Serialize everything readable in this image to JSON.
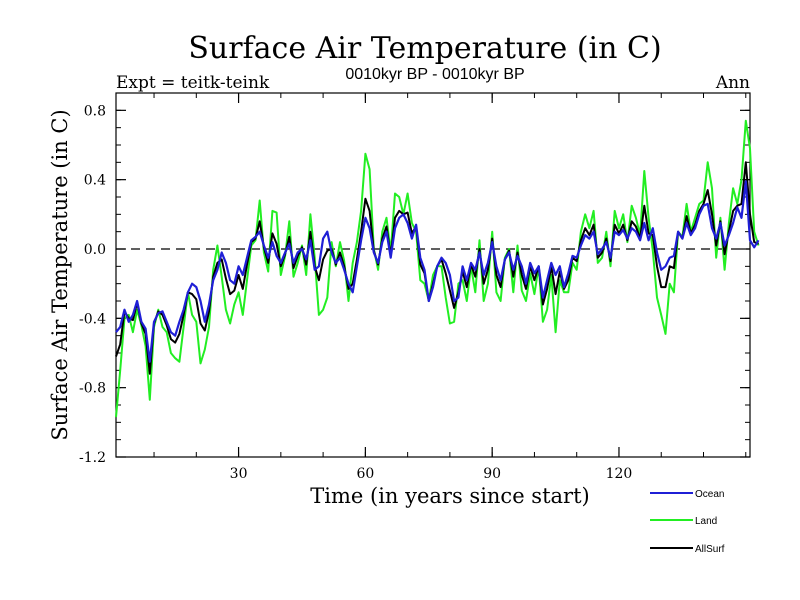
{
  "chart_data": {
    "type": "line",
    "title": "Surface Air Temperature (in C)",
    "subtitle_left": "Expt = teitk-teink",
    "subtitle_center": "0010kyr BP - 0010kyr BP",
    "subtitle_right": "Ann",
    "xlabel": "Time (in years since start)",
    "ylabel": "Surface Air Temperature (in C)",
    "xlim": [
      1,
      151
    ],
    "ylim": [
      -1.2,
      0.9
    ],
    "xticks": [
      30,
      60,
      90,
      120
    ],
    "xtick_labels": [
      "30",
      "60",
      "90",
      "120"
    ],
    "yticks": [
      -1.2,
      -0.8,
      -0.4,
      0.0,
      0.4,
      0.8
    ],
    "ytick_labels": [
      "-1.2",
      "-0.8",
      "-0.4",
      "0.0",
      "0.4",
      "0.8"
    ],
    "zero_line": "dashed",
    "legend_position": "bottom-right",
    "series": [
      {
        "name": "Ocean",
        "color": "#1f1fd6",
        "values": [
          -0.48,
          -0.45,
          -0.35,
          -0.42,
          -0.38,
          -0.3,
          -0.42,
          -0.46,
          -0.65,
          -0.42,
          -0.37,
          -0.36,
          -0.42,
          -0.48,
          -0.5,
          -0.42,
          -0.35,
          -0.25,
          -0.2,
          -0.22,
          -0.3,
          -0.42,
          -0.32,
          -0.18,
          -0.12,
          -0.02,
          -0.08,
          -0.18,
          -0.2,
          -0.1,
          -0.15,
          -0.05,
          0.05,
          0.07,
          0.1,
          0.02,
          -0.05,
          0.04,
          -0.04,
          -0.08,
          -0.02,
          0.03,
          -0.08,
          -0.02,
          0.0,
          -0.06,
          0.05,
          -0.12,
          -0.1,
          0.06,
          0.1,
          -0.02,
          -0.08,
          -0.05,
          -0.12,
          -0.2,
          -0.25,
          -0.1,
          0.05,
          0.18,
          0.12,
          -0.02,
          -0.08,
          0.04,
          0.1,
          -0.05,
          0.12,
          0.18,
          0.2,
          0.15,
          0.06,
          0.14,
          -0.05,
          -0.12,
          -0.3,
          -0.22,
          -0.1,
          -0.05,
          -0.08,
          -0.15,
          -0.3,
          -0.28,
          -0.1,
          -0.18,
          -0.08,
          -0.12,
          -0.02,
          -0.15,
          -0.08,
          0.04,
          -0.1,
          -0.18,
          -0.06,
          -0.02,
          -0.12,
          -0.04,
          -0.1,
          -0.2,
          -0.08,
          -0.14,
          -0.1,
          -0.28,
          -0.18,
          -0.08,
          -0.15,
          -0.1,
          -0.22,
          -0.14,
          -0.04,
          -0.05,
          0.02,
          0.08,
          0.06,
          0.1,
          -0.03,
          0.0,
          0.04,
          -0.05,
          0.1,
          0.08,
          0.11,
          0.06,
          0.12,
          0.1,
          0.05,
          0.15,
          0.05,
          0.12,
          -0.02,
          -0.12,
          -0.1,
          -0.05,
          -0.04,
          0.1,
          0.06,
          0.15,
          0.08,
          0.12,
          0.2,
          0.25,
          0.26,
          0.12,
          0.06,
          0.15,
          0.02,
          0.08,
          0.15,
          0.24,
          0.18,
          0.39,
          0.05,
          0.01,
          0.05
        ]
      },
      {
        "name": "Land",
        "color": "#22ee22",
        "values": [
          -0.97,
          -0.7,
          -0.4,
          -0.38,
          -0.48,
          -0.35,
          -0.44,
          -0.56,
          -0.87,
          -0.45,
          -0.35,
          -0.45,
          -0.48,
          -0.6,
          -0.63,
          -0.65,
          -0.45,
          -0.25,
          -0.38,
          -0.42,
          -0.66,
          -0.58,
          -0.45,
          -0.12,
          0.02,
          -0.16,
          -0.35,
          -0.43,
          -0.32,
          -0.25,
          -0.38,
          -0.18,
          0.02,
          0.05,
          0.28,
          -0.02,
          -0.13,
          0.22,
          0.21,
          -0.15,
          -0.04,
          0.16,
          -0.16,
          -0.08,
          0.02,
          -0.15,
          0.2,
          -0.05,
          -0.38,
          -0.35,
          -0.28,
          0.04,
          -0.1,
          0.04,
          -0.07,
          -0.3,
          -0.08,
          0.04,
          0.22,
          0.55,
          0.46,
          0.0,
          -0.12,
          0.1,
          0.18,
          -0.02,
          0.32,
          0.3,
          0.2,
          0.32,
          0.15,
          0.1,
          -0.18,
          -0.2,
          -0.3,
          -0.15,
          -0.1,
          -0.1,
          -0.28,
          -0.43,
          -0.42,
          -0.2,
          -0.18,
          -0.3,
          -0.1,
          -0.25,
          0.05,
          -0.3,
          -0.2,
          0.1,
          -0.25,
          -0.3,
          -0.05,
          0.0,
          -0.25,
          0.02,
          -0.24,
          -0.3,
          -0.14,
          -0.26,
          -0.1,
          -0.42,
          -0.35,
          -0.15,
          -0.48,
          -0.18,
          -0.25,
          -0.25,
          -0.08,
          -0.12,
          0.1,
          0.2,
          0.12,
          0.22,
          -0.08,
          -0.05,
          0.1,
          -0.1,
          0.22,
          0.12,
          0.2,
          0.04,
          0.25,
          0.18,
          0.08,
          0.45,
          0.18,
          -0.01,
          -0.28,
          -0.38,
          -0.49,
          -0.2,
          -0.25,
          0.1,
          0.07,
          0.26,
          0.1,
          0.18,
          0.26,
          0.28,
          0.5,
          0.35,
          -0.05,
          0.18,
          -0.12,
          0.15,
          0.35,
          0.26,
          0.4,
          0.74,
          0.58,
          0.1,
          0.02
        ]
      },
      {
        "name": "AllSurf",
        "color": "#000000",
        "values": [
          -0.62,
          -0.55,
          -0.36,
          -0.4,
          -0.41,
          -0.31,
          -0.43,
          -0.49,
          -0.72,
          -0.43,
          -0.36,
          -0.38,
          -0.44,
          -0.52,
          -0.54,
          -0.49,
          -0.38,
          -0.25,
          -0.26,
          -0.29,
          -0.43,
          -0.47,
          -0.36,
          -0.16,
          -0.08,
          -0.06,
          -0.17,
          -0.26,
          -0.24,
          -0.15,
          -0.23,
          -0.09,
          0.04,
          0.06,
          0.16,
          0.01,
          -0.08,
          0.09,
          0.03,
          -0.1,
          -0.03,
          0.07,
          -0.11,
          -0.04,
          0.01,
          -0.09,
          0.1,
          -0.1,
          -0.18,
          -0.06,
          -0.01,
          0.0,
          -0.09,
          -0.02,
          -0.1,
          -0.23,
          -0.2,
          -0.06,
          0.1,
          0.29,
          0.22,
          -0.01,
          -0.09,
          0.06,
          0.13,
          -0.04,
          0.18,
          0.22,
          0.2,
          0.21,
          0.09,
          0.13,
          -0.09,
          -0.14,
          -0.3,
          -0.2,
          -0.1,
          -0.06,
          -0.14,
          -0.24,
          -0.34,
          -0.25,
          -0.13,
          -0.22,
          -0.09,
          -0.16,
          0.0,
          -0.2,
          -0.12,
          0.06,
          -0.15,
          -0.22,
          -0.06,
          -0.01,
          -0.16,
          -0.02,
          -0.15,
          -0.23,
          -0.1,
          -0.18,
          -0.1,
          -0.32,
          -0.23,
          -0.1,
          -0.26,
          -0.13,
          -0.23,
          -0.18,
          -0.05,
          -0.07,
          0.05,
          0.12,
          0.08,
          0.14,
          -0.05,
          -0.02,
          0.06,
          -0.07,
          0.14,
          0.09,
          0.14,
          0.05,
          0.16,
          0.13,
          0.06,
          0.25,
          0.09,
          0.08,
          -0.1,
          -0.22,
          -0.22,
          -0.1,
          -0.11,
          0.1,
          0.06,
          0.19,
          0.09,
          0.14,
          0.22,
          0.26,
          0.34,
          0.2,
          0.02,
          0.16,
          -0.03,
          0.1,
          0.22,
          0.25,
          0.26,
          0.5,
          0.2,
          0.04,
          0.03
        ]
      }
    ]
  }
}
